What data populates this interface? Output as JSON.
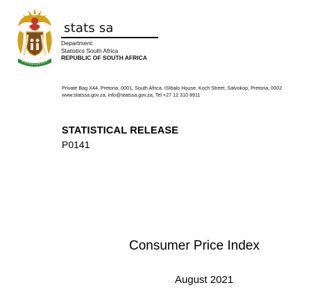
{
  "header": {
    "brand": "stats sa",
    "department_line1": "Department:",
    "department_line2": "Statistics South Africa",
    "department_line3": "REPUBLIC OF SOUTH AFRICA",
    "logo_icon": "south-africa-coat-of-arms-icon"
  },
  "contact": {
    "address_line": "Private Bag X44, Pretoria, 0001, South Africa, ISIbalo House, Koch Street, Salvokop, Pretoria, 0002",
    "web_line": "www.statssa.gov.za, info@statssa.gov.za, Tel +27 12 310 8911"
  },
  "release": {
    "label": "STATISTICAL RELEASE",
    "code": "P0141"
  },
  "document": {
    "title": "Consumer Price Index",
    "date": "August 2021"
  },
  "colors": {
    "gold": "#d4a017",
    "red": "#c0392b",
    "green": "#2e8b3a",
    "brown": "#7b4a1e",
    "text": "#000000"
  }
}
